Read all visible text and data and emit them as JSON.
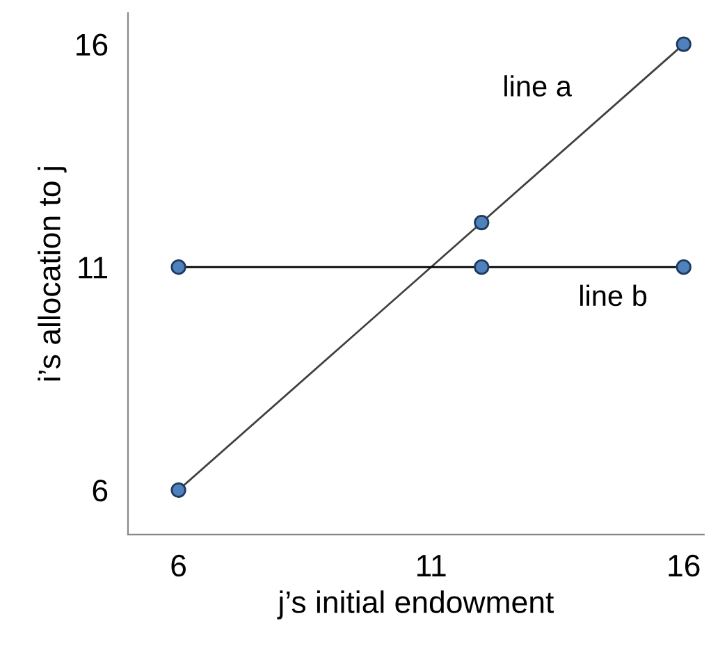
{
  "chart_data": {
    "type": "line",
    "xlabel": "j’s initial endowment",
    "ylabel": "i’s allocation to j",
    "x": [
      6,
      12,
      16
    ],
    "series": [
      {
        "name": "line a",
        "color": "#404040",
        "values": [
          6,
          12,
          16
        ]
      },
      {
        "name": "line b",
        "color": "#000000",
        "values": [
          11,
          11,
          11
        ]
      }
    ],
    "marker": "circle",
    "line_style": "solid",
    "xlim": [
      5,
      16.4
    ],
    "ylim": [
      5,
      16.7
    ],
    "xticks": [
      6,
      11,
      16
    ],
    "yticks": [
      6,
      11,
      16
    ],
    "grid": false,
    "legend": false
  }
}
